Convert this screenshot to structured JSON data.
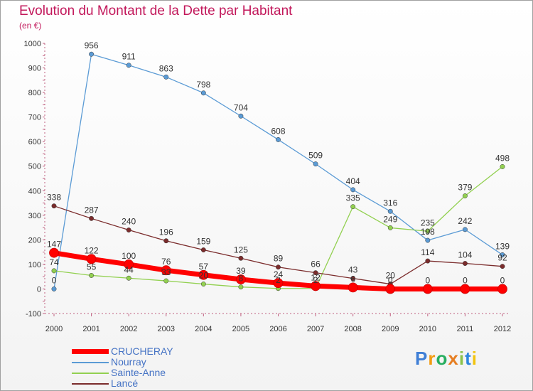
{
  "title": "Evolution du Montant de la Dette par Habitant",
  "subtitle": "(en €)",
  "logo": {
    "text": "Proxiti",
    "colors": [
      "#3f7fd6",
      "#f39c12",
      "#27ae60",
      "#e67e22",
      "#8bc34a",
      "#2e86de",
      "#f1c40f"
    ]
  },
  "chart_data": {
    "type": "line",
    "title": "Evolution du Montant de la Dette par Habitant",
    "subtitle": "(en €)",
    "xlabel": "",
    "ylabel": "",
    "x": [
      "2000",
      "2001",
      "2002",
      "2003",
      "2004",
      "2005",
      "2006",
      "2007",
      "2008",
      "2009",
      "2010",
      "2011",
      "2012"
    ],
    "ylim": [
      -100,
      1000
    ],
    "yticks": [
      -100,
      0,
      100,
      200,
      300,
      400,
      500,
      600,
      700,
      800,
      900,
      1000
    ],
    "grid": false,
    "legend_position": "bottom-left",
    "series": [
      {
        "name": "CRUCHERAY",
        "color": "#ff0000",
        "values": [
          147,
          122,
          100,
          76,
          57,
          39,
          24,
          12,
          6,
          0,
          0,
          0,
          0
        ],
        "labels": [
          "147",
          "122",
          "100",
          "76",
          "57",
          "39",
          "24",
          "12",
          "6",
          "0",
          "0",
          "0",
          "0"
        ]
      },
      {
        "name": "Nourray",
        "color": "#5b9bd5",
        "values": [
          0,
          956,
          911,
          863,
          798,
          704,
          608,
          509,
          404,
          316,
          198,
          242,
          139
        ],
        "labels": [
          "0",
          "956",
          "911",
          "863",
          "798",
          "704",
          "608",
          "509",
          "404",
          "316",
          "198",
          "242",
          "139"
        ]
      },
      {
        "name": "Sainte-Anne",
        "color": "#92d050",
        "values": [
          74,
          55,
          44,
          33,
          20,
          8,
          2,
          2,
          335,
          249,
          235,
          379,
          498
        ],
        "labels": [
          "74",
          "55",
          "44",
          "33",
          "20",
          "8",
          "2",
          "2",
          "335",
          "249",
          "235",
          "379",
          "498"
        ]
      },
      {
        "name": "Lancé",
        "color": "#7b2c2c",
        "values": [
          338,
          287,
          240,
          196,
          159,
          125,
          89,
          66,
          43,
          20,
          114,
          104,
          92
        ],
        "labels": [
          "338",
          "287",
          "240",
          "196",
          "159",
          "125",
          "89",
          "66",
          "43",
          "20",
          "114",
          "104",
          "92"
        ]
      }
    ]
  }
}
